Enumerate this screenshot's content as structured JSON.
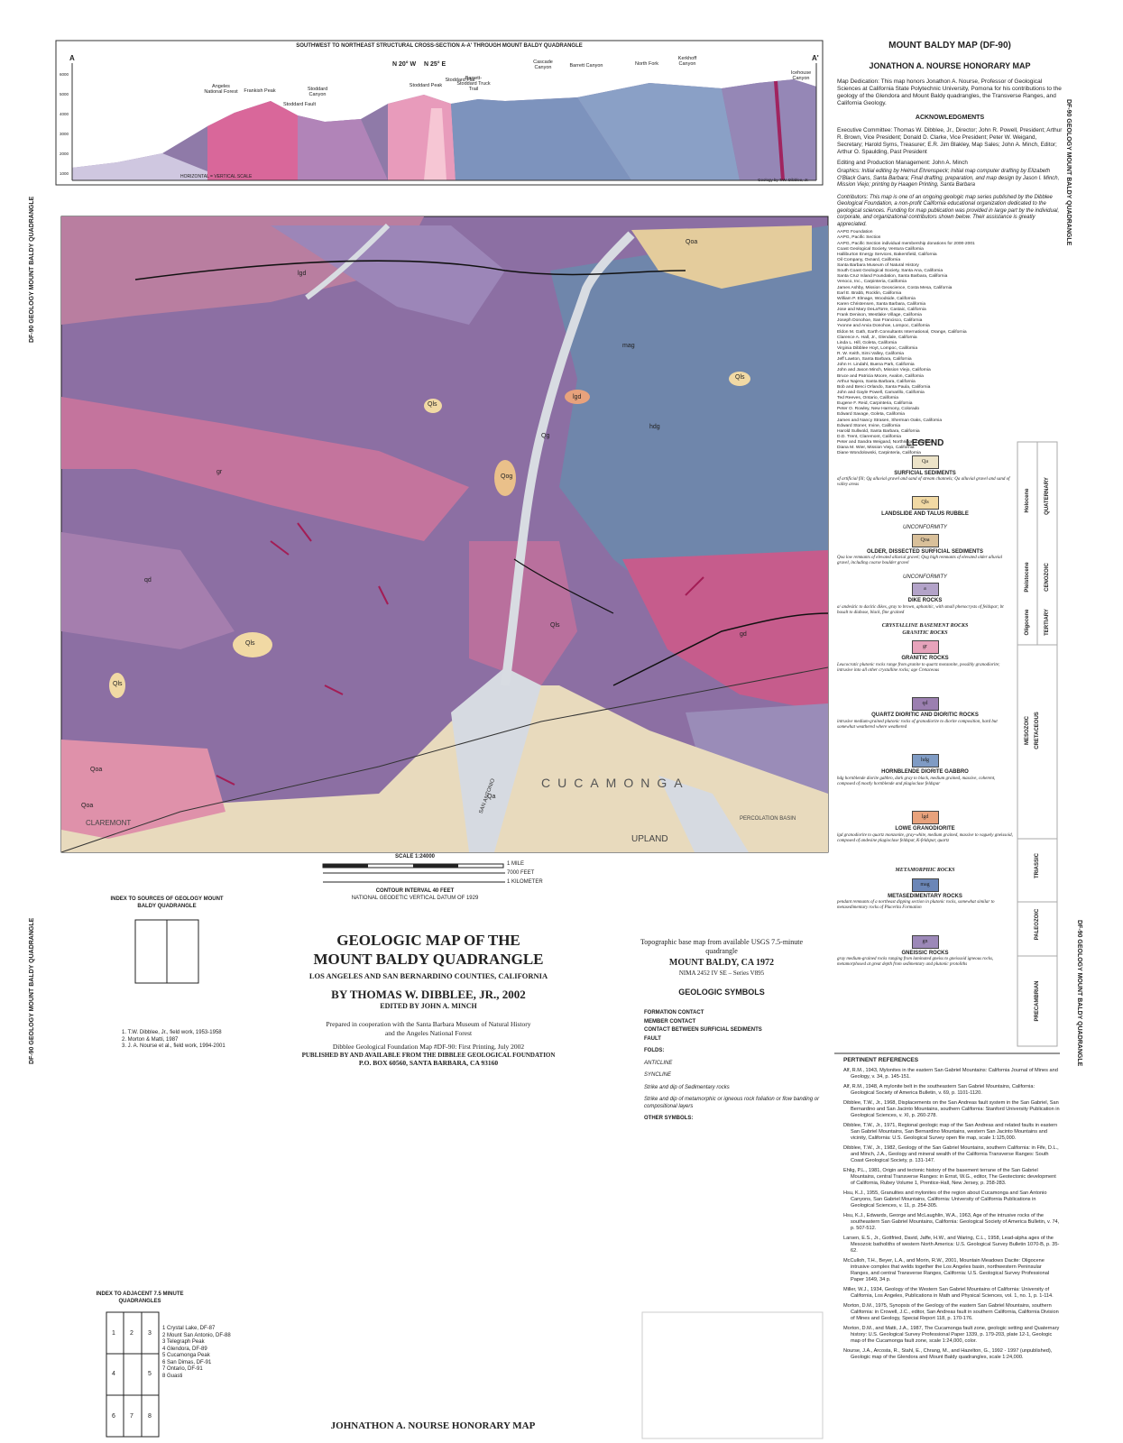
{
  "side_label": "DF-90 GEOLOGY MOUNT BALDY QUADRANGLE",
  "cross_section": {
    "title": "SOUTHWEST TO NORTHEAST STRUCTURAL CROSS-SECTION A-A' THROUGH MOUNT BALDY QUADRANGLE",
    "end_left": "A",
    "end_right": "A'",
    "bend_left": "N 20° W",
    "bend_right": "N 25° E",
    "features": [
      "Angeles National Forest",
      "Frankish Peak",
      "Stoddard Canyon",
      "Stoddard Fault",
      "Stoddard Peak",
      "Stoddard Flat",
      "Barrett-Stoddard Truck Trail",
      "Cascade Canyon",
      "Barrett Canyon",
      "North Fork",
      "Kerkhoff Canyon",
      "Icehouse Canyon"
    ],
    "elevations": [
      "6000",
      "5000",
      "4000",
      "3000",
      "2000",
      "1000"
    ],
    "scale_note": "HORIZONTAL = VERTICAL SCALE",
    "credit": "Geology by T.W. Dibblee, Jr."
  },
  "header": {
    "map_id": "MOUNT BALDY MAP (DF-90)",
    "honorary": "JONATHON A. NOURSE HONORARY MAP",
    "dedication": "Map Dedication: This map honors Jonathon A. Nourse, Professor of Geological Sciences at California State Polytechnic University, Pomona for his contributions to the geology of the Glendora and Mount Baldy quadrangles, the Transverse Ranges, and California Geology.",
    "ack_heading": "ACKNOWLEDGMENTS",
    "committee": "Executive Committee: Thomas W. Dibblee, Jr., Director; John R. Powell, President; Arthur R. Brown, Vice President; Donald D. Clarke, Vice President; Peter W. Weigand, Secretary; Harold Syms, Treasurer; E.R. Jim Blakley, Map Sales; John A. Minch, Editor; Arthur O. Spaulding, Past President",
    "editing": "Editing and Production Management: John A. Minch",
    "graphics": "Graphics: Initial editing by Helmut Ehrenspeck; Initial map computer drafting by Elizabeth O'Black Gans, Santa Barbara; Final drafting, preparation, and map design by Jason I. Minch, Mission Viejo; printing by Haagen Printing, Santa Barbara",
    "contributors": "Contributors: This map is one of an ongoing geologic map series published by the Dibblee Geological Foundation, a non-profit California educational organization dedicated to the geological sciences. Funding for map publication was provided in large part by the individual, corporate, and organizational contributors shown below. Their assistance is greatly appreciated.",
    "contributor_list": [
      "AAPG Foundation",
      "AAPG, Pacific Section",
      "AAPG, Pacific Section individual membership donations for 2000-2001",
      "Coast Geological Society, Ventura California",
      "Halliburton Energy Services, Bakersfield, California",
      "Oil Company, Oxnard, California",
      "Santa Barbara Museum of Natural History",
      "South Coast Geological Society, Santa Ana, California",
      "Santa Cruz Island Foundation, Santa Barbara, California",
      "Venoco, Inc., Carpinteria, California",
      "James Ashby, Mission Geoscience, Costa Mesa, California",
      "Earl E. Brabb, Rocklin, California",
      "William P. Elmage, Woodside, California",
      "Karen Christensen, Santa Barbara, California",
      "Jose and Mary DeLaTorre, Castaic, California",
      "Frank Denison, Westlake Village, California",
      "Joseph Donohoe, San Francisco, California",
      "Yvonne and Arvia Donohoe, Lompoc, California",
      "Eldon M. Gath, Earth Consultants International, Orange, California",
      "Clarence A. Hall, Jr., Glendale, California",
      "Linda L. Hill, Goleta, California",
      "Virginia Dibblee Hoyt, Lompoc, California",
      "R. W. Keith, Simi Valley, California",
      "Jeff Lawton, Santa Barbara, California",
      "John H. Lindahl, Buena Park, California",
      "John and Jason Minch, Mission Viejo, California",
      "Bruce and Patricia Moore, Avalon, California",
      "Arthur Najera, Santa Barbara, California",
      "Bob and Benci Orlando, Santa Paula, California",
      "John and Gayle Powell, Camarillo, California",
      "Ted Reeves, Ontario, California",
      "Eugene F. Reid, Carpinteria, California",
      "Peter O. Rowley, New Harmony, Colorado",
      "Edward Savage, Goleta, California",
      "James and Nancy Strasen, Sherman Oaks, California",
      "Edward Stoner, Irvine, California",
      "Harold Sullwold, Santa Barbara, California",
      "D.D. Trent, Claremont, California",
      "Peter and Sandra Weigand, Northridge, California",
      "Diana M. Wier, Mission Viejo, California",
      "Diane Wondolowski, Carpinteria, California"
    ]
  },
  "legend": {
    "title": "LEGEND",
    "units": [
      {
        "symbol": "Qa",
        "color": "#ece3c8",
        "name": "SURFICIAL SEDIMENTS",
        "text": "af artificial fill; Qg alluvial gravel and sand of stream channels; Qa alluvial gravel and sand of valley areas"
      },
      {
        "symbol": "Qls",
        "color": "#f1d9a4",
        "name": "LANDSLIDE AND TALUS RUBBLE",
        "text": ""
      },
      {
        "symbol": "Qoa",
        "color": "#d9c09a",
        "name": "OLDER, DISSECTED SURFICIAL SEDIMENTS",
        "text": "Qoa low remnants of elevated alluvial gravel; Qog high remnants of elevated older alluvial gravel, including coarse boulder gravel"
      },
      {
        "symbol": "a",
        "color": "#b3a3c9",
        "name": "DIKE ROCKS",
        "text": "a/ andesitic to dacitic dikes, gray to brown, aphanitic, with small phenocrysts of feldspar; bt basalt to diabase, black, fine grained"
      },
      {
        "symbol": "gr",
        "color": "#e7a3bb",
        "name": "GRANITIC ROCKS",
        "text": "Leucocratic plutonic rocks range from granite to quartz monzonite, possibly granodiorite; intrusive into all other crystalline rocks; age Cretaceous"
      },
      {
        "symbol": "qd",
        "color": "#9b7fb0",
        "name": "QUARTZ DIORITIC AND DIORITIC ROCKS",
        "text": "intrusive medium-grained plutonic rocks of granodiorite to diorite composition, hard but somewhat weathered where weathered"
      },
      {
        "symbol": "hdg",
        "color": "#7f9bc4",
        "name": "HORNBLENDE DIORITE GABBRO",
        "text": "hdg hornblende diorite gabbro, dark gray to black, medium grained, massive, coherent, composed of mostly hornblende and plagioclase feldspar"
      },
      {
        "symbol": "lgd",
        "color": "#e8a27c",
        "name": "LOWE GRANODIORITE",
        "text": "lgd granodiorite to quartz monzonite, gray-white, medium grained, massive to vaguely gneissoid, composed of andesine plagioclase feldspar, K-feldspar, quartz"
      },
      {
        "symbol": "mag",
        "color": "#6b86b7",
        "name": "METASEDIMENTARY ROCKS",
        "text": "pendant remnants of a northeast dipping section in plutonic rocks, somewhat similar to metasedimentary rocks of Placerita Formation"
      },
      {
        "symbol": "gn",
        "color": "#9c88b8",
        "name": "GNEISSIC ROCKS",
        "text": "gray medium-grained rocks ranging from laminated gneiss to gneissoid igneous rocks, metamorphosed at great depth from sedimentary and plutonic protoliths"
      }
    ],
    "crystalline": "CRYSTALLINE BASEMENT ROCKS",
    "granitic": "GRANITIC ROCKS",
    "metamorphic": "METAMORPHIC ROCKS",
    "unconformity": "UNCONFORMITY",
    "ages": [
      "Holocene",
      "Pleistocene",
      "QUATERNARY",
      "CENOZOIC",
      "Oligocene",
      "TERTIARY",
      "CRETACEOUS",
      "MESOZOIC",
      "TRIASSIC",
      "PALEOZOIC",
      "PRECAMBRIAN"
    ]
  },
  "references": {
    "heading": "PERTINENT REFERENCES",
    "items": [
      "Alf, R.M., 1943, Mylonites in the eastern San Gabriel Mountains: California Journal of Mines and Geology, v. 34, p. 145-151.",
      "Alf, R.M., 1948, A mylonite belt in the southeastern San Gabriel Mountains, California: Geological Society of America Bulletin, v. 69, p. 1101-1120.",
      "Dibblee, T.W., Jr., 1968, Displacements on the San Andreas fault system in the San Gabriel, San Bernardino and San Jacinto Mountains, southern California: Stanford University Publication in Geological Sciences, v. XI, p. 260-278.",
      "Dibblee, T.W., Jr., 1971, Regional geologic map of the San Andreas and related faults in eastern San Gabriel Mountains, San Bernardino Mountains, western San Jacinto Mountains and vicinity, California: U.S. Geological Survey open file map, scale 1:125,000.",
      "Dibblee, T.W., Jr., 1982, Geology of the San Gabriel Mountains, southern California: in Fife, D.L., and Minch, J.A., Geology and mineral wealth of the California Transverse Ranges: South Coast Geological Society, p. 131-147.",
      "Ehlig, P.L., 1981, Origin and tectonic history of the basement terrane of the San Gabriel Mountains, central Transverse Ranges: in Ernst, W.G., editor, The Geotectonic development of California, Rubey Volume 1, Prentice-Hall, New Jersey, p. 258-283.",
      "Hsu, K.J., 1955, Granulites and mylonites of the region about Cucamonga and San Antonio Canyons, San Gabriel Mountains, California: University of California Publications in Geological Sciences, v. 11, p. 254-305.",
      "Hsu, K.J., Edwards, George and McLaughlin, W.A., 1963, Age of the intrusive rocks of the southeastern San Gabriel Mountains, California: Geological Society of America Bulletin, v. 74, p. 507-512.",
      "Larsen, E.S., Jr., Gottfried, David, Jaffe, H.W., and Waring, C.L., 1958, Lead-alpha ages of the Mesozoic batholiths of western North America: U.S. Geological Survey Bulletin 1070-B, p. 35-62.",
      "McCulloh, T.H., Beyer, L.A., and Morin, R.W., 2001, Mountain Meadows Dacite: Oligocene intrusive complex that welds together the Los Angeles basin, northwestern Peninsular Ranges, and central Transverse Ranges, California: U.S. Geological Survey Professional Paper 1649, 34 p.",
      "Miller, W.J., 1934, Geology of the Western San Gabriel Mountains of California: University of California, Los Angeles, Publications in Math and Physical Sciences, vol. 1, no. 1, p. 1-114.",
      "Morton, D.M., 1975, Synopsis of the Geology of the eastern San Gabriel Mountains, southern California: in Crowell, J.C., editor, San Andreas fault in southern California, California Division of Mines and Geology, Special Report 118, p. 170-176.",
      "Morton, D.M., and Matti, J.A., 1987, The Cucamonga fault zone, geologic setting and Quaternary history: U.S. Geological Survey Professional Paper 1339, p. 179-203, plate 12-1, Geologic map of the Cucamonga fault zone, scale 1:24,000, color.",
      "Nourse, J.A., Arcosta, R., Stahl, E., Chrang, M., and Hazelton, G., 1992 - 1997 (unpublished), Geologic map of the Glendora and Mount Baldy quadrangles, scale 1:24,000."
    ]
  },
  "map": {
    "labels": [
      "Qls",
      "Qls",
      "Qls",
      "Qls",
      "Qa",
      "Qg",
      "Qoa",
      "Qoa",
      "Qog",
      "gr",
      "qd",
      "gd",
      "hdg",
      "lgd",
      "mag",
      "lgd",
      "Qls",
      "Qoa"
    ],
    "places": [
      "CUCAMONGA",
      "UPLAND",
      "CLAREMONT",
      "PERCOLATION BASIN",
      "SAN ANTONIO"
    ]
  },
  "bottom": {
    "scale": "SCALE 1:24000",
    "scale_units": [
      "1 MILE",
      "1 KILOMETER",
      "7000 FEET"
    ],
    "contour": "CONTOUR INTERVAL 40 FEET",
    "datum": "NATIONAL GEODETIC VERTICAL DATUM OF 1929",
    "index_sources_title": "INDEX TO SOURCES OF GEOLOGY MOUNT BALDY QUADRANGLE",
    "sources": [
      "1. T.W. Dibblee, Jr., field work, 1953-1958",
      "2. Morton & Matti, 1987",
      "3. J. A. Nourse et al., field work, 1994-2001"
    ],
    "index_adjacent_title": "INDEX TO ADJACENT 7.5 MINUTE QUADRANGLES",
    "adjacent": [
      "1 Crystal Lake, DF-87",
      "2 Mount San Antonio, DF-88",
      "3 Telegraph Peak",
      "4 Glendora, DF-89",
      "5 Cucamonga Peak",
      "6 San Dimas, DF-91",
      "7 Ontario, DF-91",
      "8 Guasti"
    ],
    "grid_numbers": [
      "1",
      "2",
      "3",
      "4",
      "5",
      "6",
      "7",
      "8"
    ],
    "title": "GEOLOGIC MAP OF THE",
    "title2": "MOUNT BALDY QUADRANGLE",
    "counties": "LOS ANGELES AND SAN BERNARDINO COUNTIES, CALIFORNIA",
    "author": "BY THOMAS W. DIBBLEE, JR., 2002",
    "editor": "EDITED BY JOHN A. MINCH",
    "prepared": "Prepared in cooperation with the Santa Barbara Museum of Natural History and the Angeles National Forest",
    "series": "Dibblee Geological Foundation Map #DF-90: First Printing, July 2002",
    "published": "PUBLISHED BY AND AVAILABLE FROM THE DIBBLEE GEOLOGICAL FOUNDATION",
    "address": "P.O. BOX 60560, SANTA BARBARA, CA 93160",
    "honorary": "JOHNATHON A. NOURSE HONORARY MAP",
    "topo": "Topographic base map from available USGS 7.5-minute quadrangle",
    "topo_name": "MOUNT BALDY, CA 1972",
    "topo_series": "NIMA 2452 IV SE – Series V895",
    "symbols_title": "GEOLOGIC SYMBOLS",
    "symbols": [
      "FORMATION CONTACT",
      "MEMBER CONTACT",
      "CONTACT BETWEEN SURFICIAL SEDIMENTS",
      "FAULT",
      "FOLDS:",
      "ANTICLINE",
      "SYNCLINE",
      "Strike and dip of Sedimentary rocks",
      "Strike and dip of metamorphic or igneous rock foliation or flow banding or compositional layers",
      "OTHER SYMBOLS:"
    ]
  }
}
